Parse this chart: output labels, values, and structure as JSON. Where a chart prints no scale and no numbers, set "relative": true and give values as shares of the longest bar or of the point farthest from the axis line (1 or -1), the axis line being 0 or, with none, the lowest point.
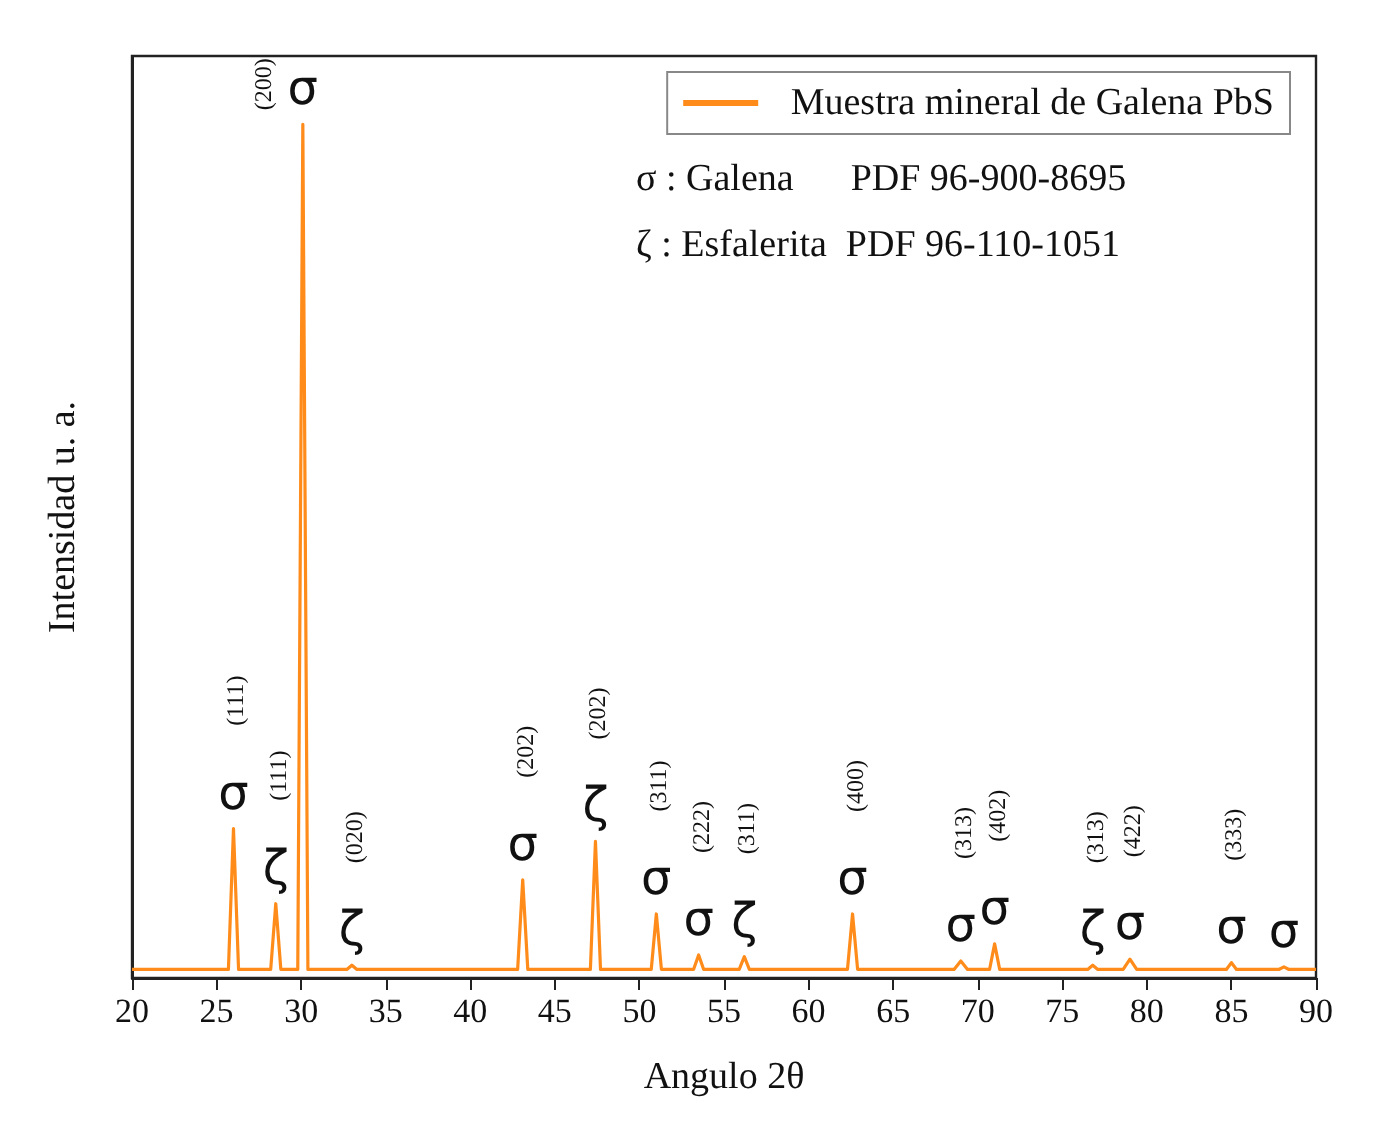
{
  "chart_data": {
    "type": "line",
    "relative": true,
    "xlabel": "Angulo 2θ",
    "ylabel": "Intensidad u. a.",
    "xlim": [
      20,
      90
    ],
    "xticks": [
      20,
      25,
      30,
      35,
      40,
      45,
      50,
      55,
      60,
      65,
      70,
      75,
      80,
      85,
      90
    ],
    "legend": "top right",
    "marker": "none",
    "line_style": "solid",
    "grid": false,
    "x": [
      20,
      25.7,
      26.0,
      26.3,
      28.2,
      28.5,
      28.8,
      29.8,
      30.1,
      30.4,
      32.7,
      33.0,
      33.3,
      42.8,
      43.1,
      43.4,
      47.1,
      47.4,
      47.7,
      50.7,
      51.0,
      51.3,
      53.2,
      53.5,
      53.8,
      55.9,
      56.2,
      56.5,
      62.3,
      62.6,
      62.9,
      68.6,
      69.0,
      69.4,
      70.7,
      71.0,
      71.3,
      76.5,
      76.8,
      77.1,
      78.6,
      79.0,
      79.4,
      84.7,
      85.0,
      85.3,
      87.8,
      88.1,
      88.4,
      90
    ],
    "series": [
      {
        "name": "Muestra mineral de Galena PbS",
        "color": "#ff8c1a",
        "values": [
          0.01,
          0.01,
          0.175,
          0.01,
          0.01,
          0.087,
          0.01,
          0.01,
          1,
          0.01,
          0.01,
          0.015,
          0.01,
          0.01,
          0.115,
          0.01,
          0.01,
          0.16,
          0.01,
          0.01,
          0.075,
          0.01,
          0.01,
          0.027,
          0.01,
          0.01,
          0.025,
          0.01,
          0.01,
          0.075,
          0.01,
          0.01,
          0.02,
          0.01,
          0.01,
          0.04,
          0.01,
          0.01,
          0.015,
          0.01,
          0.01,
          0.022,
          0.01,
          0.01,
          0.018,
          0.01,
          0.01,
          0.013,
          0.01,
          0.01
        ]
      }
    ],
    "annotations": [
      "σ : Galena      PDF 96-900-8695",
      "ζ : Esfalerita  PDF 96-110-1051",
      {
        "text": "σ",
        "x": 26.0,
        "y": 0.175
      },
      "(111)",
      {
        "text": "ζ",
        "x": 28.5,
        "y": 0.087
      },
      "(111)",
      {
        "text": "σ",
        "x": 30.1,
        "y": 1
      },
      "(200)",
      {
        "text": "ζ",
        "x": 33.0,
        "y": 0.015
      },
      "(020)",
      {
        "text": "σ",
        "x": 43.1,
        "y": 0.115
      },
      "(202)",
      {
        "text": "ζ",
        "x": 47.4,
        "y": 0.16
      },
      "(202)",
      {
        "text": "σ",
        "x": 51.0,
        "y": 0.075
      },
      "(311)",
      {
        "text": "σ",
        "x": 53.5,
        "y": 0.027
      },
      "(222)",
      {
        "text": "ζ",
        "x": 56.2,
        "y": 0.025
      },
      "(311)",
      {
        "text": "σ",
        "x": 62.6,
        "y": 0.075
      },
      "(400)",
      {
        "text": "σ",
        "x": 69.0,
        "y": 0.02
      },
      "(313)",
      {
        "text": "σ",
        "x": 71.0,
        "y": 0.04
      },
      "(402)",
      {
        "text": "ζ",
        "x": 76.8,
        "y": 0.015
      },
      "(313)",
      {
        "text": "σ",
        "x": 79.0,
        "y": 0.022
      },
      "(422)",
      {
        "text": "σ",
        "x": 85.0,
        "y": 0.018
      },
      "(333)",
      {
        "text": "σ",
        "x": 88.1,
        "y": 0.013
      }
    ]
  }
}
